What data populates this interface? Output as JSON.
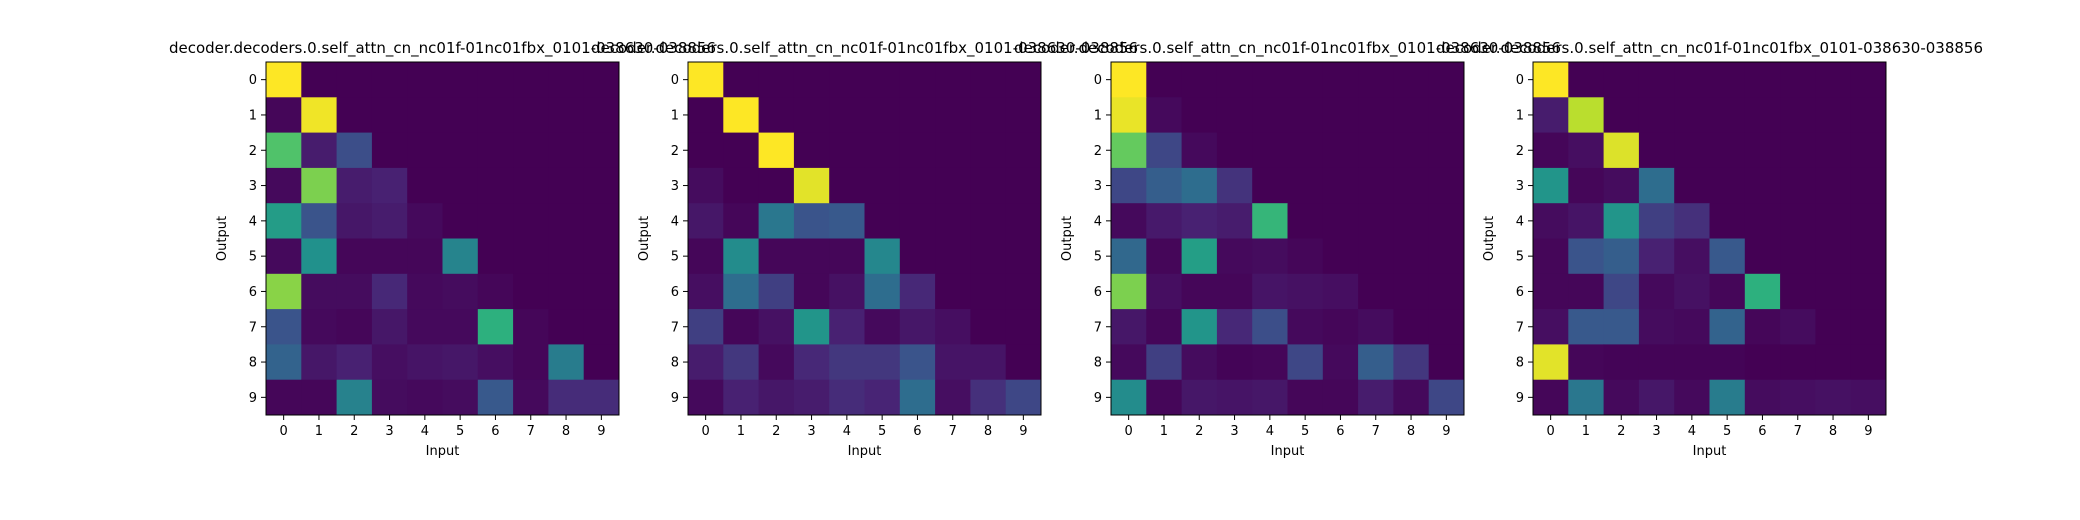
{
  "chart_data": [
    {
      "type": "heatmap",
      "title": "decoder.decoders.0.self_attn_cn_nc01f-01nc01fbx_0101-038630-038856",
      "xlabel": "Input",
      "ylabel": "Output",
      "x_ticks": [
        "0",
        "1",
        "2",
        "3",
        "4",
        "5",
        "6",
        "7",
        "8",
        "9"
      ],
      "y_ticks": [
        "0",
        "1",
        "2",
        "3",
        "4",
        "5",
        "6",
        "7",
        "8",
        "9"
      ],
      "colormap": "viridis",
      "vmin": 0,
      "vmax": 1,
      "values": [
        [
          1.0,
          0.0,
          0.0,
          0.0,
          0.0,
          0.0,
          0.0,
          0.0,
          0.0,
          0.0
        ],
        [
          0.02,
          0.98,
          0.0,
          0.0,
          0.0,
          0.0,
          0.0,
          0.0,
          0.0,
          0.0
        ],
        [
          0.72,
          0.1,
          0.24,
          0.0,
          0.0,
          0.0,
          0.0,
          0.0,
          0.0,
          0.0
        ],
        [
          0.03,
          0.8,
          0.1,
          0.12,
          0.0,
          0.0,
          0.0,
          0.0,
          0.0,
          0.0
        ],
        [
          0.55,
          0.26,
          0.08,
          0.1,
          0.03,
          0.0,
          0.0,
          0.0,
          0.0,
          0.0
        ],
        [
          0.03,
          0.5,
          0.02,
          0.02,
          0.02,
          0.45,
          0.0,
          0.0,
          0.0,
          0.0
        ],
        [
          0.82,
          0.04,
          0.04,
          0.14,
          0.03,
          0.04,
          0.02,
          0.0,
          0.0,
          0.0
        ],
        [
          0.26,
          0.03,
          0.02,
          0.08,
          0.03,
          0.03,
          0.64,
          0.02,
          0.0,
          0.0
        ],
        [
          0.32,
          0.08,
          0.12,
          0.05,
          0.07,
          0.08,
          0.05,
          0.02,
          0.42,
          0.0
        ],
        [
          0.02,
          0.02,
          0.44,
          0.04,
          0.03,
          0.04,
          0.28,
          0.03,
          0.15,
          0.15
        ]
      ]
    },
    {
      "type": "heatmap",
      "title": "decoder.decoders.0.self_attn_cn_nc01f-01nc01fbx_0101-038630-038856",
      "xlabel": "Input",
      "ylabel": "Output",
      "x_ticks": [
        "0",
        "1",
        "2",
        "3",
        "4",
        "5",
        "6",
        "7",
        "8",
        "9"
      ],
      "y_ticks": [
        "0",
        "1",
        "2",
        "3",
        "4",
        "5",
        "6",
        "7",
        "8",
        "9"
      ],
      "colormap": "viridis",
      "vmin": 0,
      "vmax": 1,
      "values": [
        [
          1.0,
          0.0,
          0.0,
          0.0,
          0.0,
          0.0,
          0.0,
          0.0,
          0.0,
          0.0
        ],
        [
          0.0,
          1.0,
          0.0,
          0.0,
          0.0,
          0.0,
          0.0,
          0.0,
          0.0,
          0.0
        ],
        [
          0.0,
          0.0,
          1.0,
          0.0,
          0.0,
          0.0,
          0.0,
          0.0,
          0.0,
          0.0
        ],
        [
          0.04,
          0.0,
          0.0,
          0.96,
          0.0,
          0.0,
          0.0,
          0.0,
          0.0,
          0.0
        ],
        [
          0.08,
          0.02,
          0.4,
          0.26,
          0.28,
          0.0,
          0.0,
          0.0,
          0.0,
          0.0
        ],
        [
          0.02,
          0.48,
          0.02,
          0.02,
          0.02,
          0.46,
          0.0,
          0.0,
          0.0,
          0.0
        ],
        [
          0.05,
          0.36,
          0.2,
          0.02,
          0.06,
          0.36,
          0.14,
          0.0,
          0.0,
          0.0
        ],
        [
          0.2,
          0.02,
          0.06,
          0.52,
          0.12,
          0.03,
          0.08,
          0.05,
          0.0,
          0.0
        ],
        [
          0.1,
          0.18,
          0.03,
          0.14,
          0.18,
          0.18,
          0.26,
          0.07,
          0.07,
          0.0
        ],
        [
          0.03,
          0.12,
          0.08,
          0.1,
          0.15,
          0.13,
          0.36,
          0.05,
          0.16,
          0.22
        ]
      ]
    },
    {
      "type": "heatmap",
      "title": "decoder.decoders.0.self_attn_cn_nc01f-01nc01fbx_0101-038630-038856",
      "xlabel": "Input",
      "ylabel": "Output",
      "x_ticks": [
        "0",
        "1",
        "2",
        "3",
        "4",
        "5",
        "6",
        "7",
        "8",
        "9"
      ],
      "y_ticks": [
        "0",
        "1",
        "2",
        "3",
        "4",
        "5",
        "6",
        "7",
        "8",
        "9"
      ],
      "colormap": "viridis",
      "vmin": 0,
      "vmax": 1,
      "values": [
        [
          1.0,
          0.0,
          0.0,
          0.0,
          0.0,
          0.0,
          0.0,
          0.0,
          0.0,
          0.0
        ],
        [
          0.97,
          0.03,
          0.0,
          0.0,
          0.0,
          0.0,
          0.0,
          0.0,
          0.0,
          0.0
        ],
        [
          0.76,
          0.22,
          0.03,
          0.0,
          0.0,
          0.0,
          0.0,
          0.0,
          0.0,
          0.0
        ],
        [
          0.22,
          0.3,
          0.36,
          0.17,
          0.0,
          0.0,
          0.0,
          0.0,
          0.0,
          0.0
        ],
        [
          0.03,
          0.09,
          0.12,
          0.1,
          0.66,
          0.0,
          0.0,
          0.0,
          0.0,
          0.0
        ],
        [
          0.34,
          0.02,
          0.56,
          0.03,
          0.04,
          0.02,
          0.0,
          0.0,
          0.0,
          0.0
        ],
        [
          0.8,
          0.05,
          0.02,
          0.02,
          0.07,
          0.06,
          0.05,
          0.0,
          0.0,
          0.0
        ],
        [
          0.08,
          0.02,
          0.52,
          0.14,
          0.24,
          0.03,
          0.02,
          0.04,
          0.0,
          0.0
        ],
        [
          0.03,
          0.2,
          0.04,
          0.01,
          0.02,
          0.22,
          0.03,
          0.3,
          0.18,
          0.0
        ],
        [
          0.48,
          0.02,
          0.08,
          0.07,
          0.08,
          0.02,
          0.02,
          0.1,
          0.03,
          0.22
        ]
      ]
    },
    {
      "type": "heatmap",
      "title": "decoder.decoders.0.self_attn_cn_nc01f-01nc01fbx_0101-038630-038856",
      "xlabel": "Input",
      "ylabel": "Output",
      "x_ticks": [
        "0",
        "1",
        "2",
        "3",
        "4",
        "5",
        "6",
        "7",
        "8",
        "9"
      ],
      "y_ticks": [
        "0",
        "1",
        "2",
        "3",
        "4",
        "5",
        "6",
        "7",
        "8",
        "9"
      ],
      "colormap": "viridis",
      "vmin": 0,
      "vmax": 1,
      "values": [
        [
          1.0,
          0.0,
          0.0,
          0.0,
          0.0,
          0.0,
          0.0,
          0.0,
          0.0,
          0.0
        ],
        [
          0.1,
          0.9,
          0.0,
          0.0,
          0.0,
          0.0,
          0.0,
          0.0,
          0.0,
          0.0
        ],
        [
          0.02,
          0.05,
          0.95,
          0.0,
          0.0,
          0.0,
          0.0,
          0.0,
          0.0,
          0.0
        ],
        [
          0.52,
          0.02,
          0.04,
          0.36,
          0.0,
          0.0,
          0.0,
          0.0,
          0.0,
          0.0
        ],
        [
          0.04,
          0.07,
          0.52,
          0.2,
          0.16,
          0.0,
          0.0,
          0.0,
          0.0,
          0.0
        ],
        [
          0.02,
          0.26,
          0.3,
          0.12,
          0.05,
          0.28,
          0.0,
          0.0,
          0.0,
          0.0
        ],
        [
          0.02,
          0.02,
          0.22,
          0.03,
          0.06,
          0.02,
          0.64,
          0.0,
          0.0,
          0.0
        ],
        [
          0.05,
          0.28,
          0.28,
          0.04,
          0.03,
          0.32,
          0.02,
          0.04,
          0.0,
          0.0
        ],
        [
          0.96,
          0.02,
          0.01,
          0.01,
          0.01,
          0.01,
          0.0,
          0.0,
          0.0,
          0.0
        ],
        [
          0.02,
          0.4,
          0.03,
          0.08,
          0.03,
          0.42,
          0.04,
          0.05,
          0.06,
          0.05
        ]
      ]
    }
  ]
}
